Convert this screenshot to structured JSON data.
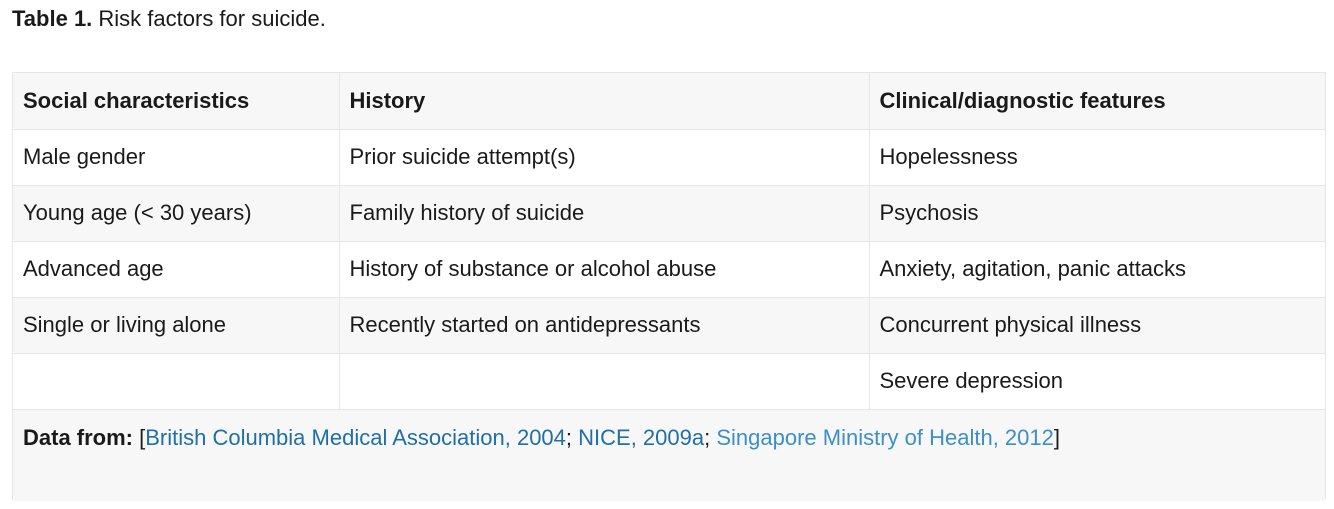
{
  "caption": {
    "label": "Table 1.",
    "text": " Risk factors for suicide."
  },
  "table": {
    "headers": [
      "Social characteristics",
      "History",
      "Clinical/diagnostic features"
    ],
    "rows": [
      [
        "Male gender",
        "Prior suicide attempt(s)",
        "Hopelessness"
      ],
      [
        "Young age (< 30 years)",
        "Family history of suicide",
        "Psychosis"
      ],
      [
        "Advanced age",
        "History of substance or alcohol abuse",
        "Anxiety, agitation, panic attacks"
      ],
      [
        "Single or living alone",
        "Recently started on antidepressants",
        "Concurrent physical illness"
      ],
      [
        "",
        "",
        "Severe depression"
      ]
    ]
  },
  "footer": {
    "label": "Data from:",
    "open_bracket": " [",
    "refs": [
      "British Columbia Medical Association, 2004",
      "NICE, 2009a",
      "Singapore Ministry of Health, 2012"
    ],
    "separator": "; ",
    "close_bracket": "]"
  },
  "colors": {
    "link": "#1f6fa8",
    "link_light": "#3c8fc7",
    "shaded_row": "#f7f7f7",
    "border": "#e6e6e6"
  }
}
